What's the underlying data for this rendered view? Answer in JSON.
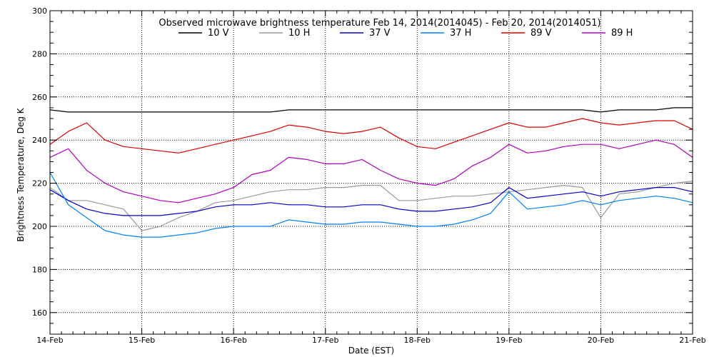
{
  "chart_data": {
    "type": "line",
    "title": "Observed microwave brightness temperature Feb 14, 2014(2014045) - Feb 20, 2014(2014051)",
    "xlabel": "Date (EST)",
    "ylabel": "Brightness Temperature, Deg K",
    "xlim": [
      0,
      7
    ],
    "ylim": [
      150,
      300
    ],
    "x_ticks": [
      0,
      1,
      2,
      3,
      4,
      5,
      6,
      7
    ],
    "x_tick_labels": [
      "14-Feb",
      "15-Feb",
      "16-Feb",
      "17-Feb",
      "18-Feb",
      "19-Feb",
      "20-Feb",
      "21-Feb"
    ],
    "y_ticks": [
      160,
      180,
      200,
      220,
      240,
      260,
      280,
      300
    ],
    "grid": true,
    "legend": "top-center",
    "x": [
      0,
      0.2,
      0.4,
      0.6,
      0.8,
      1,
      1.2,
      1.4,
      1.6,
      1.8,
      2,
      2.2,
      2.4,
      2.6,
      2.8,
      3,
      3.2,
      3.4,
      3.6,
      3.8,
      4,
      4.2,
      4.4,
      4.6,
      4.8,
      5,
      5.2,
      5.4,
      5.6,
      5.8,
      6,
      6.2,
      6.4,
      6.6,
      6.8,
      7
    ],
    "series": [
      {
        "name": "10 V",
        "color": "#000000",
        "values": [
          254,
          253,
          253,
          253,
          253,
          253,
          253,
          253,
          253,
          253,
          253,
          253,
          253,
          254,
          254,
          254,
          254,
          254,
          254,
          254,
          254,
          254,
          254,
          254,
          254,
          254,
          254,
          254,
          254,
          254,
          253,
          254,
          254,
          254,
          255,
          255
        ]
      },
      {
        "name": "10 H",
        "color": "#999999",
        "values": [
          218,
          212,
          212,
          210,
          208,
          198,
          200,
          204,
          207,
          211,
          212,
          214,
          216,
          217,
          217,
          218,
          218,
          219,
          219,
          212,
          212,
          213,
          214,
          214,
          215,
          216,
          217,
          218,
          219,
          218,
          204,
          215,
          216,
          218,
          220,
          221
        ]
      },
      {
        "name": "37 V",
        "color": "#0000cc",
        "values": [
          217,
          212,
          208,
          206,
          205,
          205,
          205,
          206,
          207,
          209,
          210,
          210,
          211,
          210,
          210,
          209,
          209,
          210,
          210,
          208,
          207,
          207,
          208,
          209,
          211,
          218,
          213,
          214,
          215,
          216,
          214,
          216,
          217,
          218,
          218,
          216
        ]
      },
      {
        "name": "37 H",
        "color": "#0080ff",
        "values": [
          225,
          210,
          204,
          198,
          196,
          195,
          195,
          196,
          197,
          199,
          200,
          200,
          200,
          203,
          202,
          201,
          201,
          202,
          202,
          201,
          200,
          200,
          201,
          203,
          206,
          216,
          208,
          209,
          210,
          212,
          210,
          212,
          213,
          214,
          213,
          211
        ]
      },
      {
        "name": "89 V",
        "color": "#dd0000",
        "values": [
          238,
          244,
          248,
          240,
          237,
          236,
          235,
          234,
          236,
          238,
          240,
          242,
          244,
          247,
          246,
          244,
          243,
          244,
          246,
          241,
          237,
          236,
          239,
          242,
          245,
          248,
          246,
          246,
          248,
          250,
          248,
          247,
          248,
          249,
          249,
          245
        ]
      },
      {
        "name": "89 H",
        "color": "#b000c0",
        "values": [
          232,
          236,
          226,
          220,
          216,
          214,
          212,
          211,
          213,
          215,
          218,
          224,
          226,
          232,
          231,
          229,
          229,
          231,
          226,
          222,
          220,
          219,
          222,
          228,
          232,
          238,
          234,
          235,
          237,
          238,
          238,
          236,
          238,
          240,
          238,
          232
        ]
      }
    ]
  }
}
